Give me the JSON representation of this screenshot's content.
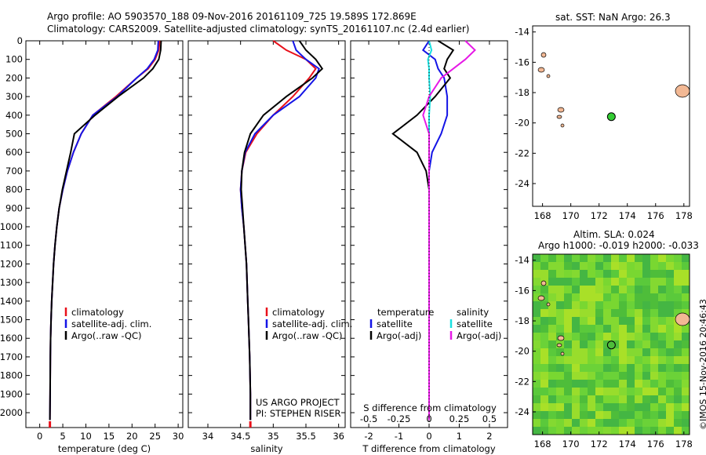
{
  "header": {
    "title_line1": "Argo profile: AO 5903570_188 09-Nov-2016 20161109_725 19.589S 172.869E",
    "title_line2": "Climatology: CARS2009. Satellite-adjusted climatology: synTS_20161107.nc (2.4d earlier)"
  },
  "map_top": {
    "title": "sat. SST: NaN Argo: 26.3"
  },
  "map_bottom": {
    "title1": "Altim. SLA: 0.024",
    "title2": "Argo h1000: -0.019 h2000: -0.033"
  },
  "credit": "©IMOS 15-Nov-2016 20:46:43",
  "project": {
    "line1": "US ARGO PROJECT",
    "line2": "PI: STEPHEN RISER"
  },
  "legend_left": [
    "climatology",
    "satellite-adj. clim.",
    "Argo(..raw -QC)"
  ],
  "legend_diff": {
    "temperature_head": "temperature",
    "salinity_head": "salinity",
    "t_satellite": "satellite",
    "t_argo": "Argo(-adj)",
    "s_satellite": "satellite",
    "s_argo": "Argo(-adj)"
  },
  "colors": {
    "climatology": "#e8101a",
    "satellite": "#1414e6",
    "argo": "#000000",
    "s_satellite": "#19e0e0",
    "s_argo": "#e619e6",
    "land": "#f2b894",
    "argo_dot": "#33cc33"
  },
  "chart_data": [
    {
      "type": "line",
      "xlabel": "temperature (deg C)",
      "xlim": [
        -3,
        31
      ],
      "ylim": [
        2080,
        0
      ],
      "xticks": [
        0,
        5,
        10,
        15,
        20,
        25,
        30
      ],
      "yticks": [
        0,
        100,
        200,
        300,
        400,
        500,
        600,
        700,
        800,
        900,
        1000,
        1100,
        1200,
        1300,
        1400,
        1500,
        1600,
        1700,
        1800,
        1900,
        2000
      ],
      "series": [
        {
          "name": "climatology",
          "x": [
            26.0,
            25.8,
            25.0,
            23.5,
            21.0,
            16.5,
            11.5,
            9.0,
            7.3,
            6.0,
            5.0,
            4.2,
            3.7,
            3.3,
            3.0,
            2.8,
            2.6,
            2.45,
            2.35,
            2.3,
            2.25,
            2.2
          ],
          "y": [
            0,
            50,
            100,
            150,
            200,
            300,
            400,
            500,
            600,
            700,
            800,
            900,
            1000,
            1100,
            1200,
            1300,
            1400,
            1500,
            1600,
            1700,
            1900,
            2040
          ]
        },
        {
          "name": "satellite-adj. clim.",
          "x": [
            25.7,
            25.6,
            24.8,
            23.3,
            21.0,
            16.8,
            11.5,
            9.0,
            7.3,
            6.0,
            5.0,
            4.2,
            3.7,
            3.3,
            3.0,
            2.8,
            2.6,
            2.45,
            2.35,
            2.3,
            2.25,
            2.2
          ],
          "y": [
            0,
            50,
            100,
            150,
            200,
            300,
            400,
            500,
            600,
            700,
            800,
            900,
            1000,
            1100,
            1200,
            1300,
            1400,
            1500,
            1600,
            1700,
            1900,
            2040
          ]
        },
        {
          "name": "Argo(..raw -QC)",
          "x": [
            26.3,
            26.2,
            25.8,
            24.5,
            22.5,
            17.0,
            12.0,
            7.5,
            6.7,
            5.8,
            4.9,
            4.2,
            3.7,
            3.3,
            3.0,
            2.8,
            2.6,
            2.45,
            2.35,
            2.3,
            2.25,
            2.2
          ],
          "y": [
            0,
            50,
            100,
            150,
            200,
            300,
            400,
            500,
            600,
            700,
            800,
            900,
            1000,
            1100,
            1200,
            1300,
            1400,
            1500,
            1600,
            1700,
            1900,
            2040
          ]
        }
      ]
    },
    {
      "type": "line",
      "xlabel": "salinity",
      "xlim": [
        33.7,
        36.1
      ],
      "ylim": [
        2080,
        0
      ],
      "xticks": [
        34,
        34.5,
        35,
        35.5,
        36
      ],
      "series": [
        {
          "name": "climatology",
          "x": [
            35.0,
            35.2,
            35.5,
            35.65,
            35.55,
            35.3,
            35.0,
            34.75,
            34.58,
            34.52,
            34.5,
            34.52,
            34.55,
            34.57,
            34.59,
            34.6,
            34.61,
            34.62,
            34.63,
            34.64,
            34.65,
            34.65
          ],
          "y": [
            0,
            50,
            100,
            150,
            200,
            300,
            400,
            500,
            600,
            700,
            800,
            900,
            1000,
            1100,
            1200,
            1300,
            1400,
            1500,
            1600,
            1700,
            1900,
            2040
          ]
        },
        {
          "name": "satellite-adj. clim.",
          "x": [
            35.3,
            35.35,
            35.5,
            35.7,
            35.65,
            35.4,
            35.0,
            34.72,
            34.57,
            34.52,
            34.5,
            34.52,
            34.55,
            34.57,
            34.59,
            34.6,
            34.61,
            34.62,
            34.63,
            34.64,
            34.65,
            34.65
          ],
          "y": [
            0,
            50,
            100,
            150,
            200,
            300,
            400,
            500,
            600,
            700,
            800,
            900,
            1000,
            1100,
            1200,
            1300,
            1400,
            1500,
            1600,
            1700,
            1900,
            2040
          ]
        },
        {
          "name": "Argo(..raw -QC)",
          "x": [
            35.4,
            35.5,
            35.65,
            35.75,
            35.6,
            35.2,
            34.85,
            34.65,
            34.56,
            34.52,
            34.51,
            34.53,
            34.55,
            34.57,
            34.59,
            34.6,
            34.61,
            34.62,
            34.63,
            34.64,
            34.65,
            34.65
          ],
          "y": [
            0,
            50,
            100,
            150,
            200,
            300,
            400,
            500,
            600,
            700,
            800,
            900,
            1000,
            1100,
            1200,
            1300,
            1400,
            1500,
            1600,
            1700,
            1900,
            2040
          ]
        }
      ]
    },
    {
      "type": "line",
      "xlabel": "T difference from climatology",
      "x2label": "S difference from climatology",
      "xlim": [
        -2.6,
        2.6
      ],
      "ylim": [
        2080,
        0
      ],
      "xticks": [
        -2,
        -1,
        0,
        1,
        2
      ],
      "x2ticks": [
        -0.5,
        -0.25,
        0,
        0.25,
        0.5
      ],
      "series": [
        {
          "name": "T satellite",
          "x": [
            0.0,
            -0.2,
            0.2,
            0.3,
            0.5,
            0.6,
            0.6,
            0.4,
            0.1,
            0.0,
            0.0,
            0.0,
            0.0,
            0.0,
            0.0,
            0.0,
            0.0,
            0.0
          ],
          "y": [
            0,
            50,
            100,
            150,
            200,
            300,
            400,
            500,
            600,
            700,
            800,
            1000,
            1200,
            1400,
            1600,
            1800,
            2000,
            2040
          ]
        },
        {
          "name": "T Argo(-adj)",
          "x": [
            0.3,
            0.8,
            0.6,
            0.5,
            0.7,
            0.2,
            -0.4,
            -1.2,
            -0.4,
            -0.1,
            0.0,
            0.0,
            0.0,
            0.0,
            0.0,
            0.0,
            0.0,
            0.0
          ],
          "y": [
            0,
            50,
            100,
            150,
            200,
            300,
            400,
            500,
            600,
            700,
            800,
            1000,
            1200,
            1400,
            1600,
            1800,
            2000,
            2040
          ]
        },
        {
          "name": "S satellite",
          "x": [
            0.0,
            0.02,
            -0.01,
            0.0,
            0.0,
            0.01,
            0.0,
            0.0,
            0.0,
            0.0,
            0.0,
            0.0,
            0.0,
            0.0,
            0.0,
            0.0,
            0.0,
            0.0
          ],
          "y": [
            0,
            50,
            100,
            150,
            200,
            300,
            400,
            500,
            600,
            700,
            800,
            1000,
            1200,
            1400,
            1600,
            1800,
            2000,
            2040
          ]
        },
        {
          "name": "S Argo(-adj)",
          "x": [
            0.3,
            0.38,
            0.3,
            0.2,
            0.1,
            0.0,
            -0.05,
            0.0,
            0.0,
            0.0,
            0.0,
            0.0,
            0.0,
            0.0,
            0.0,
            0.0,
            0.0,
            0.0
          ],
          "y": [
            0,
            50,
            100,
            150,
            200,
            300,
            400,
            500,
            600,
            700,
            800,
            1000,
            1200,
            1400,
            1600,
            1800,
            2000,
            2040
          ]
        }
      ]
    }
  ],
  "maps": {
    "lon_ticks": [
      168,
      170,
      172,
      174,
      176,
      178
    ],
    "lat_ticks_top": [
      -14,
      -16,
      -18,
      -20,
      -22,
      -24
    ],
    "lat_ticks_bottom": [
      -14,
      -16,
      -18,
      -20,
      -22,
      -24
    ],
    "argo_position": [
      172.869,
      -19.589
    ]
  }
}
